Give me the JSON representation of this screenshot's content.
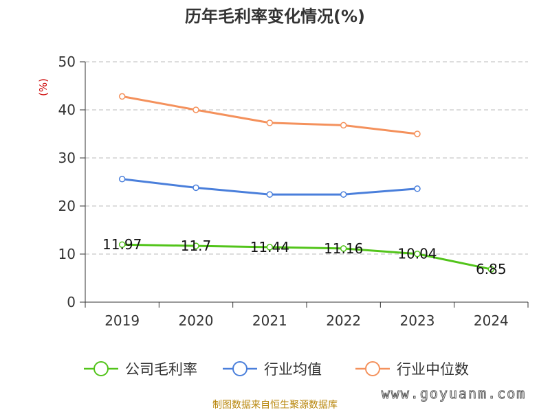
{
  "title": "历年毛利率变化情况(%)",
  "source": "制图数据来自恒生聚源数据库",
  "watermark": "www.goyuanm.com",
  "chart_data": {
    "type": "line",
    "categories": [
      "2019",
      "2020",
      "2021",
      "2022",
      "2023",
      "2024"
    ],
    "ylabel": "(%)",
    "ylim": [
      0,
      50
    ],
    "yticks": [
      0,
      10,
      20,
      30,
      40,
      50
    ],
    "ytick_labels": [
      "0",
      "10",
      "20",
      "30",
      "40",
      "50"
    ],
    "grid": true,
    "legend_position": "bottom",
    "series": [
      {
        "name": "公司毛利率",
        "color": "#52c41a",
        "values": [
          11.97,
          11.7,
          11.44,
          11.16,
          10.04,
          6.85
        ],
        "labels": [
          "11.97",
          "11.7",
          "11.44",
          "11.16",
          "10.04",
          "6.85"
        ]
      },
      {
        "name": "行业均值",
        "color": "#4a7fdb",
        "values": [
          25.6,
          23.8,
          22.4,
          22.4,
          23.6,
          null
        ]
      },
      {
        "name": "行业中位数",
        "color": "#f4915c",
        "values": [
          42.8,
          40.0,
          37.3,
          36.8,
          35.0,
          null
        ]
      }
    ]
  }
}
